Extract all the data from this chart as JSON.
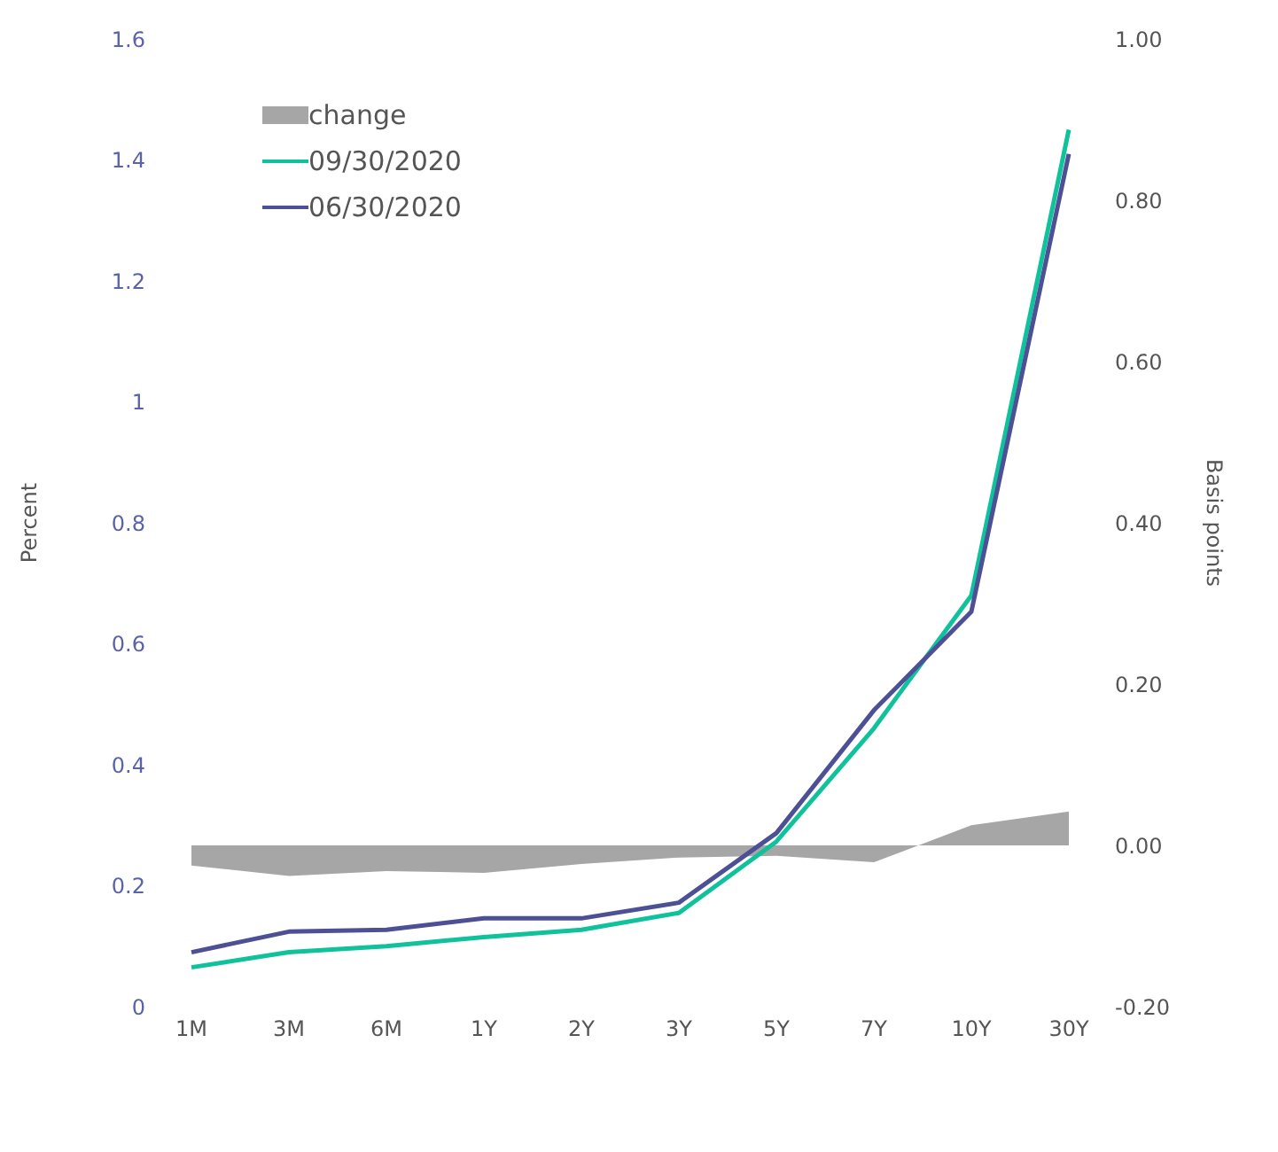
{
  "chart_data": {
    "type": "line",
    "ylabel": "Percent",
    "y2label": "Basis points",
    "categories": [
      "1M",
      "3M",
      "6M",
      "1Y",
      "2Y",
      "3Y",
      "5Y",
      "7Y",
      "10Y",
      "30Y"
    ],
    "series": [
      {
        "name": "change",
        "type": "area",
        "axis": "y2",
        "color": "#a6a6a6",
        "values": [
          -0.025,
          -0.038,
          -0.032,
          -0.034,
          -0.023,
          -0.015,
          -0.013,
          -0.021,
          0.025,
          0.042
        ]
      },
      {
        "name": "09/30/2020",
        "color": "#10c29b",
        "values": [
          0.065,
          0.09,
          0.1,
          0.115,
          0.127,
          0.155,
          0.273,
          0.46,
          0.68,
          1.45
        ]
      },
      {
        "name": "06/30/2020",
        "color": "#4e5096",
        "values": [
          0.09,
          0.124,
          0.127,
          0.146,
          0.146,
          0.172,
          0.287,
          0.49,
          0.653,
          1.41
        ]
      }
    ],
    "ylim": [
      0,
      1.6
    ],
    "yticks": [
      0,
      0.2,
      0.4,
      0.6,
      0.8,
      1,
      1.2,
      1.4,
      1.6
    ],
    "y2lim": [
      -0.2,
      1
    ],
    "y2ticks": [
      {
        "value": -0.2,
        "label": "-0.20"
      },
      {
        "value": 0,
        "label": "0.00"
      },
      {
        "value": 0.2,
        "label": "0.20"
      },
      {
        "value": 0.4,
        "label": "0.40"
      },
      {
        "value": 0.6,
        "label": "0.60"
      },
      {
        "value": 0.8,
        "label": "0.80"
      },
      {
        "value": 1,
        "label": "1.00"
      }
    ],
    "grid": false,
    "legend": "top left",
    "marker": "none",
    "line_style": "solid"
  }
}
